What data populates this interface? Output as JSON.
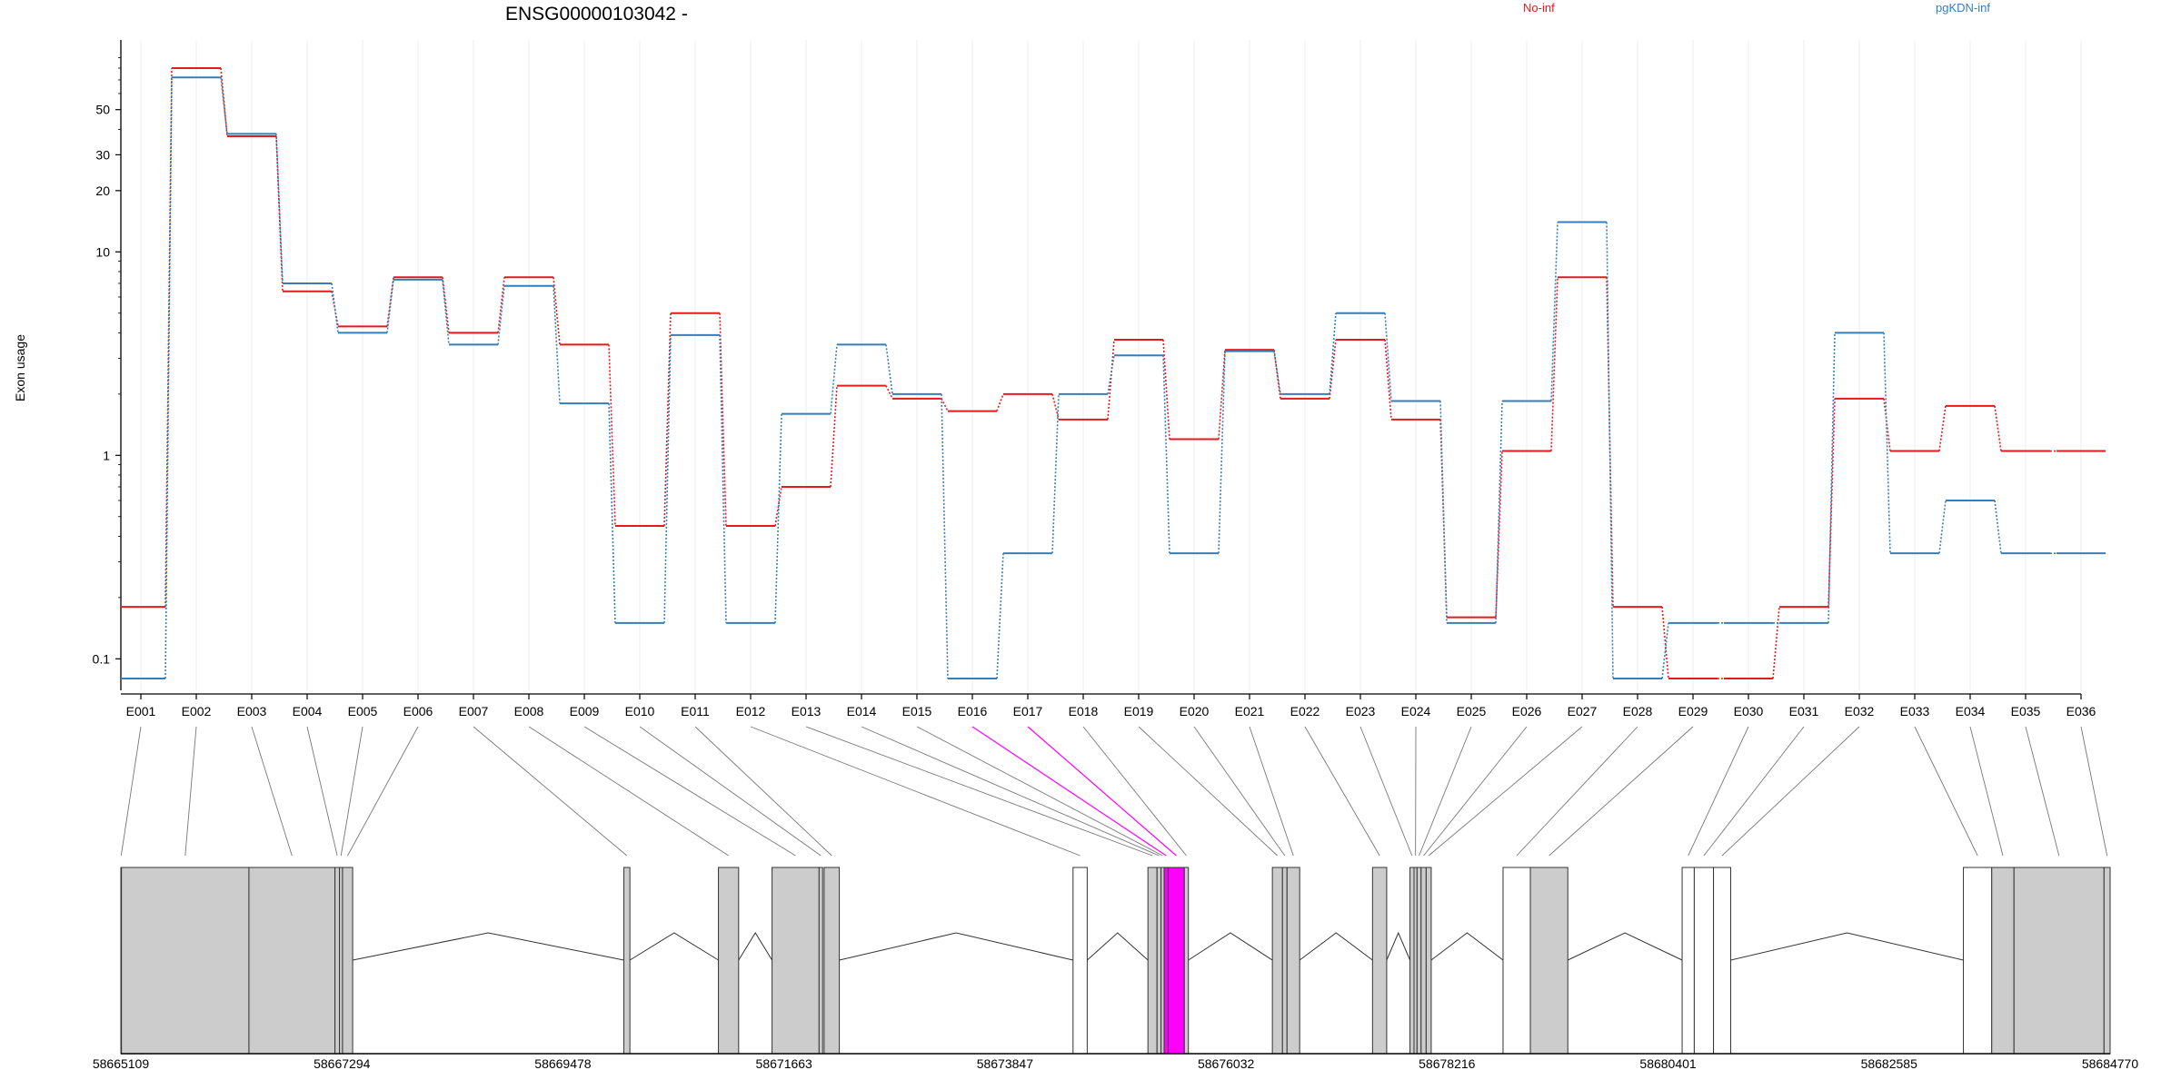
{
  "chart_data": {
    "type": "line",
    "title": "ENSG00000103042 -",
    "ylabel": "Exon usage",
    "xlabel": "",
    "y_scale": "log",
    "ylim": [
      0.07,
      110
    ],
    "y_ticks": [
      0.1,
      1,
      10,
      20,
      30,
      50
    ],
    "y_tick_labels": [
      "0.1",
      "1",
      "10",
      "20",
      "30",
      "50"
    ],
    "grid": "vertical",
    "legend_position": "top",
    "categories": [
      "E001",
      "E002",
      "E003",
      "E004",
      "E005",
      "E006",
      "E007",
      "E008",
      "E009",
      "E010",
      "E011",
      "E012",
      "E013",
      "E014",
      "E015",
      "E016",
      "E017",
      "E018",
      "E019",
      "E020",
      "E021",
      "E022",
      "E023",
      "E024",
      "E025",
      "E026",
      "E027",
      "E028",
      "E029",
      "E030",
      "E031",
      "E032",
      "E033",
      "E034",
      "E035",
      "E036"
    ],
    "series": [
      {
        "name": "No-inf",
        "color": "#e41a1c",
        "values": [
          0.18,
          80,
          37,
          6.4,
          4.3,
          7.5,
          4.0,
          7.5,
          3.5,
          0.45,
          5.0,
          0.45,
          0.7,
          2.2,
          1.9,
          1.65,
          2.0,
          1.5,
          3.7,
          1.2,
          3.3,
          1.9,
          3.7,
          1.5,
          0.16,
          1.05,
          7.5,
          0.18,
          0.08,
          0.08,
          0.18,
          1.9,
          1.05,
          1.75,
          1.05,
          1.05
        ]
      },
      {
        "name": "pgKDN-inf",
        "color": "#377eb8",
        "values": [
          0.08,
          72,
          38,
          7.0,
          4.0,
          7.3,
          3.5,
          6.8,
          1.8,
          0.15,
          3.9,
          0.15,
          1.6,
          3.5,
          2.0,
          0.08,
          0.33,
          2.0,
          3.1,
          0.33,
          3.25,
          2.0,
          5.0,
          1.85,
          0.15,
          1.85,
          14.0,
          0.08,
          0.15,
          0.15,
          0.15,
          4.0,
          0.33,
          0.6,
          0.33,
          0.33
        ]
      }
    ],
    "highlighted_exons": [
      "E016",
      "E017"
    ],
    "highlight_color": "#ff00ff",
    "gene_model": {
      "coordinate_labels": [
        "58665109",
        "58667294",
        "58669478",
        "58671663",
        "58673847",
        "58676032",
        "58678216",
        "58680401",
        "58682585",
        "58684770"
      ],
      "coordinate_values": [
        58665109,
        58667294,
        58669478,
        58671663,
        58673847,
        58676032,
        58678216,
        58680401,
        58682585,
        58684770
      ],
      "exons": [
        {
          "id": "E001",
          "start": 58665109,
          "end": 58665115,
          "fill": "#cccccc"
        },
        {
          "id": "E002",
          "start": 58665115,
          "end": 58666375,
          "fill": "#cccccc"
        },
        {
          "id": "E003",
          "start": 58666375,
          "end": 58667225,
          "fill": "#cccccc"
        },
        {
          "id": "E004",
          "start": 58667225,
          "end": 58667270,
          "fill": "#cccccc"
        },
        {
          "id": "E005",
          "start": 58667270,
          "end": 58667300,
          "fill": "#cccccc"
        },
        {
          "id": "E006",
          "start": 58667300,
          "end": 58667400,
          "fill": "#cccccc"
        },
        {
          "id": "E007",
          "start": 58670080,
          "end": 58670140,
          "fill": "#cccccc"
        },
        {
          "id": "E008",
          "start": 58671015,
          "end": 58671215,
          "fill": "#cccccc"
        },
        {
          "id": "E009",
          "start": 58671545,
          "end": 58672010,
          "fill": "#cccccc"
        },
        {
          "id": "E010",
          "start": 58672010,
          "end": 58672045,
          "fill": "#cccccc"
        },
        {
          "id": "E011",
          "start": 58672060,
          "end": 58672210,
          "fill": "#cccccc"
        },
        {
          "id": "E012",
          "start": 58674520,
          "end": 58674660,
          "fill": "#ffffff"
        },
        {
          "id": "E013",
          "start": 58675260,
          "end": 58675350,
          "fill": "#cccccc"
        },
        {
          "id": "E014",
          "start": 58675350,
          "end": 58675390,
          "fill": "#cccccc"
        },
        {
          "id": "E015",
          "start": 58675390,
          "end": 58675420,
          "fill": "#cccccc"
        },
        {
          "id": "E016",
          "start": 58675420,
          "end": 58675460,
          "fill": "#ff00ff"
        },
        {
          "id": "E017",
          "start": 58675460,
          "end": 58675620,
          "fill": "#ff00ff"
        },
        {
          "id": "E018",
          "start": 58675620,
          "end": 58675660,
          "fill": "#cccccc"
        },
        {
          "id": "E019",
          "start": 58676490,
          "end": 58676590,
          "fill": "#cccccc"
        },
        {
          "id": "E020",
          "start": 58676590,
          "end": 58676635,
          "fill": "#cccccc"
        },
        {
          "id": "E021",
          "start": 58676635,
          "end": 58676760,
          "fill": "#cccccc"
        },
        {
          "id": "E022",
          "start": 58677480,
          "end": 58677620,
          "fill": "#cccccc"
        },
        {
          "id": "E023",
          "start": 58677850,
          "end": 58677890,
          "fill": "#cccccc"
        },
        {
          "id": "E024",
          "start": 58677890,
          "end": 58677920,
          "fill": "#cccccc"
        },
        {
          "id": "E025",
          "start": 58677920,
          "end": 58677960,
          "fill": "#cccccc"
        },
        {
          "id": "E026",
          "start": 58677960,
          "end": 58678010,
          "fill": "#cccccc"
        },
        {
          "id": "E027",
          "start": 58678010,
          "end": 58678060,
          "fill": "#cccccc"
        },
        {
          "id": "E028",
          "start": 58678770,
          "end": 58679040,
          "fill": "#ffffff"
        },
        {
          "id": "E029",
          "start": 58679040,
          "end": 58679410,
          "fill": "#cccccc"
        },
        {
          "id": "E030",
          "start": 58680540,
          "end": 58680660,
          "fill": "#ffffff"
        },
        {
          "id": "E031",
          "start": 58680660,
          "end": 58680850,
          "fill": "#ffffff"
        },
        {
          "id": "E032",
          "start": 58680850,
          "end": 58681020,
          "fill": "#ffffff"
        },
        {
          "id": "E033",
          "start": 58683320,
          "end": 58683600,
          "fill": "#ffffff"
        },
        {
          "id": "E034",
          "start": 58683600,
          "end": 58683820,
          "fill": "#cccccc"
        },
        {
          "id": "E035",
          "start": 58683820,
          "end": 58684710,
          "fill": "#cccccc"
        },
        {
          "id": "E036",
          "start": 58684710,
          "end": 58684770,
          "fill": "#cccccc"
        }
      ]
    }
  }
}
